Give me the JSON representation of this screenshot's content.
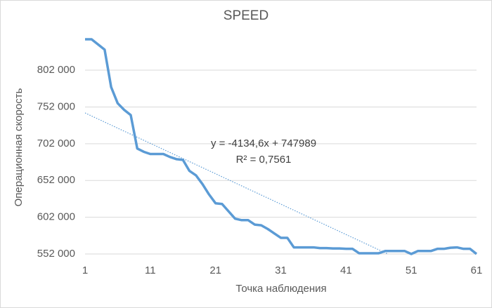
{
  "chart_data": {
    "type": "line",
    "title": "SPEED",
    "x_label": "Точка наблюдения",
    "y_label": "Операционная скорость",
    "x": [
      1,
      2,
      3,
      4,
      5,
      6,
      7,
      8,
      9,
      10,
      11,
      12,
      13,
      14,
      15,
      16,
      17,
      18,
      19,
      20,
      21,
      22,
      23,
      24,
      25,
      26,
      27,
      28,
      29,
      30,
      31,
      32,
      33,
      34,
      35,
      36,
      37,
      38,
      39,
      40,
      41,
      42,
      43,
      44,
      45,
      46,
      47,
      48,
      49,
      50,
      51,
      52,
      53,
      54,
      55,
      56,
      57,
      58,
      59,
      60,
      61
    ],
    "series": [
      {
        "name": "SPEED",
        "color": "#5b9bd5",
        "values": [
          844000,
          844000,
          837000,
          830000,
          779000,
          757000,
          748000,
          741000,
          695500,
          691000,
          688000,
          688000,
          688000,
          684000,
          681000,
          680000,
          665000,
          659000,
          647000,
          633000,
          621000,
          620000,
          610000,
          600000,
          598000,
          598000,
          592000,
          591000,
          586000,
          580000,
          574000,
          574000,
          561000,
          561000,
          561000,
          561000,
          560000,
          560000,
          559500,
          559500,
          559000,
          559000,
          553000,
          553000,
          553000,
          553000,
          556000,
          556000,
          556000,
          556000,
          552000,
          556000,
          556000,
          556000,
          559000,
          559000,
          560500,
          561000,
          559000,
          559000,
          552000
        ]
      }
    ],
    "trendline": {
      "slope": -4134.6,
      "intercept": 747989,
      "color": "#5b9bd5",
      "equation": "y = -4134,6x + 747989",
      "r2": "R² = 0,7561"
    },
    "xlim": [
      1,
      61
    ],
    "xticks": [
      1,
      11,
      21,
      31,
      41,
      51,
      61
    ],
    "ylim": [
      552000,
      845000
    ],
    "yticks": [
      {
        "value": 552000,
        "label": "552 000"
      },
      {
        "value": 602000,
        "label": "602 000"
      },
      {
        "value": 652000,
        "label": "652 000"
      },
      {
        "value": 702000,
        "label": "702 000"
      },
      {
        "value": 752000,
        "label": "752 000"
      },
      {
        "value": 802000,
        "label": "802 000"
      }
    ],
    "grid": true
  }
}
